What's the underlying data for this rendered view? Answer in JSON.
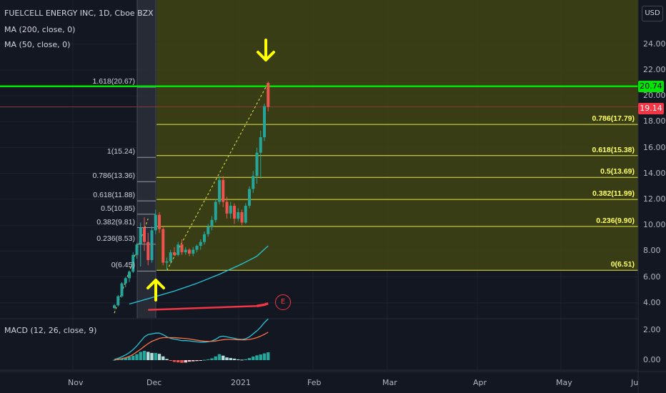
{
  "header": {
    "symbol_line": "FUELCELL ENERGY INC, 1D, Cboe BZX",
    "ma200": "MA (200, close, 0)",
    "ma50": "MA (50, close, 0)",
    "macd": "MACD (12, 26, close, 9)"
  },
  "currency_button": "USD",
  "earnings_marker": "E",
  "price_badges": {
    "green": {
      "label": "20.74",
      "color": "#00e600"
    },
    "red": {
      "label": "19.14",
      "color": "#f23645"
    }
  },
  "colors": {
    "up": "#26a69a",
    "down": "#ef5350",
    "fib_fill": "#3f4413",
    "fib_line": "#e8e84a",
    "arrow": "#ffff00",
    "ma50": "#26c6da",
    "ma200": "#f23645",
    "macd": "#26c6da",
    "signal": "#ff7043"
  },
  "chart_data": {
    "type": "candlestick",
    "y_axis_ticks": [
      "24.00",
      "22.00",
      "20.00",
      "18.00",
      "16.00",
      "14.00",
      "12.00",
      "10.00",
      "8.00",
      "6.00",
      "4.00"
    ],
    "macd_axis_ticks": [
      "2.00",
      "0.00"
    ],
    "x_axis_ticks": [
      "Nov",
      "Dec",
      "2021",
      "Feb",
      "Mar",
      "Apr",
      "May",
      "Ju"
    ],
    "fib_right": [
      {
        "label": "0.786(17.79)",
        "value": 17.79
      },
      {
        "label": "0.618(15.38)",
        "value": 15.38
      },
      {
        "label": "0.5(13.69)",
        "value": 13.69
      },
      {
        "label": "0.382(11.99)",
        "value": 11.99
      },
      {
        "label": "0.236(9.90)",
        "value": 9.9
      },
      {
        "label": "0(6.51)",
        "value": 6.51
      }
    ],
    "fib_left": [
      {
        "label": "1.618(20.67)",
        "value": 20.67
      },
      {
        "label": "1(15.24)",
        "value": 15.24
      },
      {
        "label": "0.786(13.36)",
        "value": 13.36
      },
      {
        "label": "0.618(11.88)",
        "value": 11.88
      },
      {
        "label": "0.5(10.85)",
        "value": 10.85
      },
      {
        "label": "0.382(9.81)",
        "value": 9.81
      },
      {
        "label": "0.236(8.53)",
        "value": 8.53
      },
      {
        "label": "0(6.45)",
        "value": 6.45
      }
    ],
    "candles": [
      {
        "o": 3.6,
        "h": 3.9,
        "l": 3.5,
        "c": 3.8
      },
      {
        "o": 3.8,
        "h": 4.6,
        "l": 3.7,
        "c": 4.5
      },
      {
        "o": 4.5,
        "h": 5.6,
        "l": 4.4,
        "c": 5.5
      },
      {
        "o": 5.5,
        "h": 6.0,
        "l": 5.2,
        "c": 5.9
      },
      {
        "o": 5.9,
        "h": 6.5,
        "l": 5.6,
        "c": 6.4
      },
      {
        "o": 6.4,
        "h": 7.9,
        "l": 6.3,
        "c": 7.7
      },
      {
        "o": 7.7,
        "h": 8.6,
        "l": 7.4,
        "c": 8.5
      },
      {
        "o": 8.5,
        "h": 10.2,
        "l": 6.8,
        "c": 9.8
      },
      {
        "o": 9.8,
        "h": 10.6,
        "l": 8.0,
        "c": 8.7
      },
      {
        "o": 8.7,
        "h": 9.4,
        "l": 6.9,
        "c": 7.3
      },
      {
        "o": 7.3,
        "h": 9.9,
        "l": 7.1,
        "c": 9.6
      },
      {
        "o": 9.6,
        "h": 11.2,
        "l": 9.3,
        "c": 10.8
      },
      {
        "o": 10.8,
        "h": 11.0,
        "l": 9.4,
        "c": 9.7
      },
      {
        "o": 9.7,
        "h": 9.9,
        "l": 6.9,
        "c": 7.1
      },
      {
        "o": 7.1,
        "h": 7.5,
        "l": 6.5,
        "c": 7.2
      },
      {
        "o": 7.2,
        "h": 8.1,
        "l": 7.0,
        "c": 7.9
      },
      {
        "o": 7.9,
        "h": 8.3,
        "l": 7.6,
        "c": 7.7
      },
      {
        "o": 7.7,
        "h": 8.7,
        "l": 7.6,
        "c": 8.5
      },
      {
        "o": 8.5,
        "h": 8.9,
        "l": 7.7,
        "c": 7.9
      },
      {
        "o": 7.9,
        "h": 8.3,
        "l": 7.7,
        "c": 8.1
      },
      {
        "o": 8.1,
        "h": 8.2,
        "l": 7.6,
        "c": 7.8
      },
      {
        "o": 7.8,
        "h": 8.3,
        "l": 7.6,
        "c": 8.1
      },
      {
        "o": 8.1,
        "h": 8.5,
        "l": 7.9,
        "c": 8.4
      },
      {
        "o": 8.4,
        "h": 8.9,
        "l": 8.1,
        "c": 8.7
      },
      {
        "o": 8.7,
        "h": 9.5,
        "l": 8.5,
        "c": 9.3
      },
      {
        "o": 9.3,
        "h": 10.1,
        "l": 9.1,
        "c": 9.9
      },
      {
        "o": 9.9,
        "h": 10.7,
        "l": 9.6,
        "c": 10.4
      },
      {
        "o": 10.4,
        "h": 12.0,
        "l": 10.2,
        "c": 11.8
      },
      {
        "o": 11.8,
        "h": 13.8,
        "l": 11.6,
        "c": 13.5
      },
      {
        "o": 13.5,
        "h": 13.8,
        "l": 11.4,
        "c": 11.8
      },
      {
        "o": 11.8,
        "h": 12.2,
        "l": 10.5,
        "c": 10.9
      },
      {
        "o": 10.9,
        "h": 11.8,
        "l": 10.5,
        "c": 11.5
      },
      {
        "o": 11.5,
        "h": 11.7,
        "l": 10.1,
        "c": 10.5
      },
      {
        "o": 10.5,
        "h": 11.3,
        "l": 10.3,
        "c": 11.0
      },
      {
        "o": 11.0,
        "h": 11.2,
        "l": 10.0,
        "c": 10.2
      },
      {
        "o": 10.2,
        "h": 11.7,
        "l": 10.1,
        "c": 11.5
      },
      {
        "o": 11.5,
        "h": 13.0,
        "l": 11.3,
        "c": 12.8
      },
      {
        "o": 12.8,
        "h": 14.2,
        "l": 12.5,
        "c": 13.8
      },
      {
        "o": 13.8,
        "h": 16.0,
        "l": 13.2,
        "c": 15.6
      },
      {
        "o": 15.6,
        "h": 17.3,
        "l": 13.6,
        "c": 16.8
      },
      {
        "o": 16.8,
        "h": 19.4,
        "l": 16.5,
        "c": 19.2
      },
      {
        "o": 21.0,
        "h": 21.1,
        "l": 18.8,
        "c": 19.14
      }
    ],
    "ma50": [
      {
        "i": 4,
        "v": 3.9
      },
      {
        "i": 10,
        "v": 4.4
      },
      {
        "i": 16,
        "v": 4.9
      },
      {
        "i": 22,
        "v": 5.5
      },
      {
        "i": 28,
        "v": 6.2
      },
      {
        "i": 34,
        "v": 7.0
      },
      {
        "i": 38,
        "v": 7.6
      },
      {
        "i": 41,
        "v": 8.4
      }
    ],
    "ma200": [
      {
        "i": 38,
        "v": 3.75
      },
      {
        "i": 40,
        "v": 3.85
      },
      {
        "i": 41,
        "v": 3.95
      }
    ],
    "macd_hist": [
      0.02,
      0.05,
      0.1,
      0.16,
      0.22,
      0.3,
      0.4,
      0.55,
      0.62,
      0.55,
      0.48,
      0.48,
      0.42,
      0.25,
      0.08,
      -0.05,
      -0.12,
      -0.15,
      -0.18,
      -0.16,
      -0.1,
      -0.08,
      -0.06,
      -0.02,
      0.02,
      0.05,
      0.12,
      0.25,
      0.4,
      0.3,
      0.18,
      0.14,
      0.1,
      0.05,
      0.03,
      0.06,
      0.14,
      0.24,
      0.32,
      0.38,
      0.45,
      0.52
    ],
    "macd_line": [
      0.05,
      0.12,
      0.22,
      0.35,
      0.5,
      0.7,
      0.95,
      1.25,
      1.55,
      1.7,
      1.75,
      1.8,
      1.8,
      1.7,
      1.55,
      1.45,
      1.4,
      1.35,
      1.3,
      1.3,
      1.28,
      1.25,
      1.22,
      1.2,
      1.2,
      1.22,
      1.28,
      1.38,
      1.55,
      1.6,
      1.55,
      1.5,
      1.45,
      1.4,
      1.38,
      1.42,
      1.55,
      1.75,
      1.95,
      2.2,
      2.5,
      2.75
    ],
    "signal_line": [
      0.03,
      0.06,
      0.1,
      0.16,
      0.25,
      0.38,
      0.55,
      0.72,
      0.92,
      1.1,
      1.25,
      1.35,
      1.45,
      1.5,
      1.5,
      1.5,
      1.5,
      1.48,
      1.46,
      1.44,
      1.41,
      1.37,
      1.33,
      1.29,
      1.26,
      1.25,
      1.25,
      1.27,
      1.32,
      1.36,
      1.38,
      1.38,
      1.37,
      1.36,
      1.35,
      1.35,
      1.38,
      1.43,
      1.5,
      1.6,
      1.72,
      1.86
    ]
  }
}
